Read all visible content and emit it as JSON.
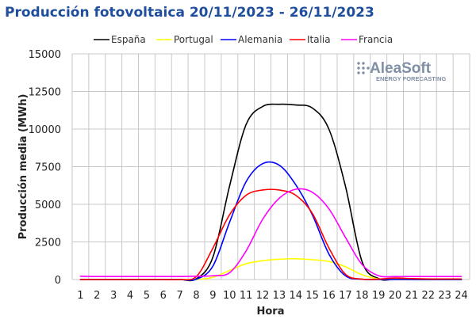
{
  "chart_data": {
    "type": "line",
    "title": "Producción fotovoltaica 20/11/2023 - 26/11/2023",
    "xlabel": "Hora",
    "ylabel": "Producción media (MWh)",
    "ylim": [
      0,
      15000
    ],
    "yticks": [
      "0",
      "2500",
      "5000",
      "7500",
      "10000",
      "12500",
      "15000"
    ],
    "ytick_values": [
      0,
      2500,
      5000,
      7500,
      10000,
      12500,
      15000
    ],
    "x": [
      1,
      2,
      3,
      4,
      5,
      6,
      7,
      8,
      9,
      10,
      11,
      12,
      13,
      14,
      15,
      16,
      17,
      18,
      19,
      20,
      21,
      22,
      23,
      24
    ],
    "grid": true,
    "legend_position": "top",
    "series": [
      {
        "name": "España",
        "color": "#000000",
        "values": [
          0,
          0,
          0,
          0,
          0,
          0,
          0,
          50,
          1500,
          6200,
          10300,
          11500,
          11650,
          11600,
          11400,
          10000,
          6200,
          1200,
          60,
          20,
          0,
          0,
          0,
          0
        ]
      },
      {
        "name": "Portugal",
        "color": "#ffff00",
        "values": [
          0,
          0,
          0,
          0,
          0,
          0,
          0,
          0,
          150,
          600,
          1050,
          1250,
          1350,
          1380,
          1320,
          1200,
          850,
          320,
          40,
          0,
          0,
          0,
          0,
          0
        ]
      },
      {
        "name": "Alemania",
        "color": "#0000ff",
        "values": [
          0,
          0,
          0,
          0,
          0,
          0,
          0,
          20,
          900,
          3800,
          6500,
          7700,
          7600,
          6300,
          4300,
          1700,
          250,
          20,
          0,
          0,
          0,
          0,
          0,
          0
        ]
      },
      {
        "name": "Italia",
        "color": "#ff0000",
        "values": [
          0,
          0,
          0,
          0,
          0,
          0,
          0,
          200,
          2100,
          4300,
          5600,
          5950,
          5950,
          5600,
          4400,
          2100,
          350,
          30,
          30,
          100,
          60,
          40,
          40,
          40
        ]
      },
      {
        "name": "Francia",
        "color": "#ff00ff",
        "values": [
          220,
          200,
          200,
          200,
          200,
          200,
          200,
          220,
          250,
          450,
          1900,
          4000,
          5400,
          6000,
          5800,
          4700,
          2800,
          1000,
          250,
          200,
          200,
          200,
          200,
          200
        ]
      }
    ]
  },
  "watermark": {
    "brand": "AleaSoft",
    "subtitle": "ENERGY FORECASTING",
    "color": "#7f8fa6"
  },
  "colors": {
    "title": "#1f4e9c",
    "grid": "#c8c8c8"
  }
}
